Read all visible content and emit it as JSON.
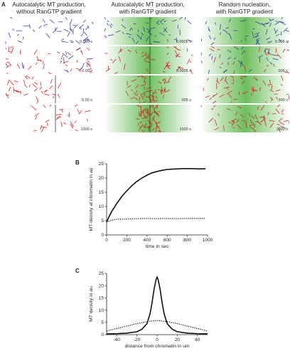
{
  "panel_a": {
    "letter": "A",
    "columns": [
      {
        "title_line1": "Autocatalytic MT production,",
        "title_line2": "without RanGTP gradient",
        "gradient": false
      },
      {
        "title_line1": "Autocatalytic MT production,",
        "title_line2": "with RanGTP gradient",
        "gradient": true
      },
      {
        "title_line1": "Random nucleation,",
        "title_line2": "with RanGTP gradient",
        "gradient": true
      }
    ],
    "rows": [
      {
        "time": "0.000 s",
        "color": "#3344aa"
      },
      {
        "time": "0.000 s",
        "color": "#dd2222"
      },
      {
        "time": "0.000 s",
        "color": "#dd2222"
      },
      {
        "time": "1000 s",
        "color": "#dd2222"
      }
    ],
    "column_times": [
      [
        "0.000 s",
        "0.00 s",
        "0.00 s",
        "1000 s"
      ],
      [
        "0.0005 s",
        "0.0005 s",
        "005 s",
        "1000 s"
      ],
      [
        "0.005 s",
        "005 s",
        "300 s",
        "1000 s"
      ]
    ],
    "colors": {
      "blue": "#3344aa",
      "red": "#dd2222",
      "green": "#3fa040"
    }
  },
  "panel_b": {
    "letter": "B",
    "chart_data": {
      "type": "line",
      "xlabel": "time in sec",
      "ylabel": "MT density at chromatin in au",
      "xlim": [
        0,
        1000
      ],
      "ylim": [
        0,
        25
      ],
      "xticks": [
        "0",
        "200",
        "400",
        "600",
        "800",
        "1000"
      ],
      "yticks": [
        "0",
        "5",
        "10",
        "15",
        "20",
        "25"
      ],
      "series": [
        {
          "style": "solid",
          "x": [
            0,
            25,
            50,
            100,
            150,
            200,
            250,
            300,
            350,
            400,
            450,
            500,
            550,
            600,
            650,
            700,
            750,
            800,
            850,
            900,
            950,
            980
          ],
          "y": [
            4.5,
            6.5,
            8.2,
            11,
            13.5,
            15.5,
            17.3,
            18.8,
            20,
            21,
            21.8,
            22.3,
            22.7,
            23,
            23.1,
            23.2,
            23.3,
            23.3,
            23.3,
            23.2,
            23.2,
            23.3
          ]
        },
        {
          "style": "dotted",
          "x": [
            0,
            50,
            100,
            150,
            200,
            300,
            400,
            500,
            600,
            700,
            800,
            900,
            980
          ],
          "y": [
            4.5,
            5.2,
            5.5,
            5.6,
            5.6,
            5.7,
            5.8,
            5.7,
            5.8,
            5.7,
            5.8,
            5.8,
            5.8
          ]
        }
      ]
    }
  },
  "panel_c": {
    "letter": "C",
    "chart_data": {
      "type": "line",
      "xlabel": "distance from chromatin in um",
      "ylabel": "MT density in au",
      "xlim": [
        -50,
        50
      ],
      "ylim": [
        0,
        25
      ],
      "xticks": [
        "-40",
        "-20",
        "0",
        "20",
        "40"
      ],
      "yticks": [
        "0",
        "5",
        "10",
        "15",
        "20",
        "25"
      ],
      "series": [
        {
          "style": "solid",
          "x": [
            -50,
            -40,
            -30,
            -20,
            -15,
            -10,
            -7,
            -5,
            -3,
            -1,
            0,
            1,
            3,
            5,
            7,
            10,
            15,
            20,
            30,
            40,
            50
          ],
          "y": [
            0.3,
            0.4,
            0.6,
            1.2,
            2.2,
            4.5,
            8.5,
            13,
            18.5,
            22.5,
            23.5,
            22.5,
            18.5,
            13,
            8.5,
            4.5,
            2.2,
            1.2,
            0.6,
            0.4,
            0.3
          ]
        },
        {
          "style": "dotted",
          "x": [
            -50,
            -40,
            -30,
            -20,
            -10,
            0,
            10,
            20,
            30,
            40,
            50
          ],
          "y": [
            1.5,
            2.5,
            3.5,
            4.5,
            5.3,
            5.8,
            5.3,
            4.5,
            3.5,
            2.5,
            1.5
          ]
        }
      ]
    }
  }
}
